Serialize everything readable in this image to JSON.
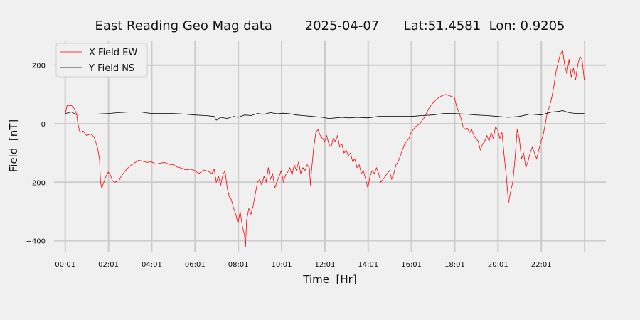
{
  "chart_data": {
    "type": "line",
    "title": "East Reading Geo Mag data        2025-04-07      Lat:51.4581  Lon: 0.9205",
    "xlabel": "Time  [Hr]",
    "ylabel": "Field  [nT]",
    "x_unit": "hours",
    "xlim": [
      -0.5,
      25
    ],
    "ylim": [
      -440,
      282
    ],
    "x_ticks": [
      {
        "value": 0.0167,
        "label": "00:01"
      },
      {
        "value": 2.0167,
        "label": "02:01"
      },
      {
        "value": 4.0167,
        "label": "04:01"
      },
      {
        "value": 6.0167,
        "label": "06:01"
      },
      {
        "value": 8.0167,
        "label": "08:01"
      },
      {
        "value": 10.0167,
        "label": "10:01"
      },
      {
        "value": 12.0167,
        "label": "12:01"
      },
      {
        "value": 14.0167,
        "label": "14:01"
      },
      {
        "value": 16.0167,
        "label": "16:01"
      },
      {
        "value": 18.0167,
        "label": "18:01"
      },
      {
        "value": 20.0167,
        "label": "20:01"
      },
      {
        "value": 22.0167,
        "label": "22:01"
      }
    ],
    "extra_gridlines_x": [
      24.0167
    ],
    "y_ticks": [
      {
        "value": 200,
        "label": "200"
      },
      {
        "value": 0,
        "label": "0"
      },
      {
        "value": -200,
        "label": "−200"
      },
      {
        "value": -400,
        "label": "−400"
      }
    ],
    "grid": true,
    "legend_position": "top-left",
    "series": [
      {
        "name": "X Field EW",
        "color": "#ff0000",
        "points": [
          [
            0.02,
            35
          ],
          [
            0.1,
            62
          ],
          [
            0.3,
            63
          ],
          [
            0.45,
            50
          ],
          [
            0.55,
            30
          ],
          [
            0.6,
            0
          ],
          [
            0.7,
            -30
          ],
          [
            0.85,
            -25
          ],
          [
            1.0,
            -40
          ],
          [
            1.2,
            -35
          ],
          [
            1.35,
            -45
          ],
          [
            1.5,
            -80
          ],
          [
            1.6,
            -120
          ],
          [
            1.65,
            -200
          ],
          [
            1.7,
            -220
          ],
          [
            1.8,
            -200
          ],
          [
            1.9,
            -180
          ],
          [
            2.0,
            -165
          ],
          [
            2.1,
            -175
          ],
          [
            2.2,
            -195
          ],
          [
            2.3,
            -200
          ],
          [
            2.5,
            -195
          ],
          [
            2.6,
            -180
          ],
          [
            2.8,
            -160
          ],
          [
            3.0,
            -145
          ],
          [
            3.2,
            -135
          ],
          [
            3.4,
            -125
          ],
          [
            3.6,
            -128
          ],
          [
            3.8,
            -132
          ],
          [
            4.0,
            -130
          ],
          [
            4.2,
            -138
          ],
          [
            4.4,
            -135
          ],
          [
            4.6,
            -132
          ],
          [
            4.8,
            -138
          ],
          [
            5.0,
            -140
          ],
          [
            5.2,
            -148
          ],
          [
            5.4,
            -152
          ],
          [
            5.6,
            -158
          ],
          [
            5.8,
            -155
          ],
          [
            6.0,
            -160
          ],
          [
            6.2,
            -170
          ],
          [
            6.4,
            -158
          ],
          [
            6.6,
            -162
          ],
          [
            6.8,
            -170
          ],
          [
            6.9,
            -155
          ],
          [
            7.0,
            -200
          ],
          [
            7.1,
            -180
          ],
          [
            7.2,
            -210
          ],
          [
            7.3,
            -175
          ],
          [
            7.4,
            -160
          ],
          [
            7.5,
            -220
          ],
          [
            7.6,
            -250
          ],
          [
            7.7,
            -260
          ],
          [
            7.8,
            -290
          ],
          [
            7.9,
            -310
          ],
          [
            8.0,
            -340
          ],
          [
            8.1,
            -300
          ],
          [
            8.2,
            -350
          ],
          [
            8.3,
            -380
          ],
          [
            8.35,
            -420
          ],
          [
            8.4,
            -330
          ],
          [
            8.5,
            -290
          ],
          [
            8.6,
            -310
          ],
          [
            8.7,
            -280
          ],
          [
            8.8,
            -240
          ],
          [
            8.9,
            -200
          ],
          [
            9.0,
            -190
          ],
          [
            9.1,
            -210
          ],
          [
            9.2,
            -180
          ],
          [
            9.3,
            -200
          ],
          [
            9.4,
            -150
          ],
          [
            9.5,
            -190
          ],
          [
            9.6,
            -170
          ],
          [
            9.7,
            -220
          ],
          [
            9.8,
            -200
          ],
          [
            9.9,
            -180
          ],
          [
            10.0,
            -160
          ],
          [
            10.1,
            -200
          ],
          [
            10.2,
            -175
          ],
          [
            10.3,
            -165
          ],
          [
            10.4,
            -150
          ],
          [
            10.5,
            -175
          ],
          [
            10.6,
            -140
          ],
          [
            10.7,
            -160
          ],
          [
            10.8,
            -130
          ],
          [
            10.9,
            -170
          ],
          [
            11.0,
            -150
          ],
          [
            11.1,
            -160
          ],
          [
            11.2,
            -140
          ],
          [
            11.3,
            -150
          ],
          [
            11.35,
            -210
          ],
          [
            11.4,
            -160
          ],
          [
            11.5,
            -80
          ],
          [
            11.6,
            -30
          ],
          [
            11.7,
            -20
          ],
          [
            11.8,
            -40
          ],
          [
            11.9,
            -50
          ],
          [
            12.0,
            -60
          ],
          [
            12.1,
            -40
          ],
          [
            12.2,
            -70
          ],
          [
            12.3,
            -80
          ],
          [
            12.4,
            -50
          ],
          [
            12.5,
            -60
          ],
          [
            12.6,
            -40
          ],
          [
            12.7,
            -80
          ],
          [
            12.8,
            -70
          ],
          [
            12.9,
            -100
          ],
          [
            13.0,
            -90
          ],
          [
            13.1,
            -110
          ],
          [
            13.2,
            -100
          ],
          [
            13.3,
            -130
          ],
          [
            13.4,
            -120
          ],
          [
            13.5,
            -150
          ],
          [
            13.6,
            -140
          ],
          [
            13.7,
            -170
          ],
          [
            13.8,
            -160
          ],
          [
            13.9,
            -190
          ],
          [
            14.0,
            -220
          ],
          [
            14.1,
            -180
          ],
          [
            14.2,
            -160
          ],
          [
            14.3,
            -170
          ],
          [
            14.4,
            -150
          ],
          [
            14.5,
            -170
          ],
          [
            14.6,
            -200
          ],
          [
            14.7,
            -190
          ],
          [
            14.8,
            -180
          ],
          [
            14.9,
            -170
          ],
          [
            15.0,
            -160
          ],
          [
            15.1,
            -190
          ],
          [
            15.2,
            -170
          ],
          [
            15.3,
            -140
          ],
          [
            15.4,
            -130
          ],
          [
            15.5,
            -110
          ],
          [
            15.6,
            -90
          ],
          [
            15.7,
            -70
          ],
          [
            15.8,
            -60
          ],
          [
            15.9,
            -50
          ],
          [
            16.0,
            -30
          ],
          [
            16.2,
            -10
          ],
          [
            16.4,
            0
          ],
          [
            16.6,
            20
          ],
          [
            16.8,
            50
          ],
          [
            17.0,
            70
          ],
          [
            17.2,
            85
          ],
          [
            17.4,
            95
          ],
          [
            17.6,
            100
          ],
          [
            17.8,
            95
          ],
          [
            18.0,
            90
          ],
          [
            18.1,
            60
          ],
          [
            18.2,
            40
          ],
          [
            18.3,
            20
          ],
          [
            18.4,
            -10
          ],
          [
            18.5,
            -20
          ],
          [
            18.6,
            -15
          ],
          [
            18.7,
            -30
          ],
          [
            18.8,
            -20
          ],
          [
            18.9,
            -40
          ],
          [
            19.0,
            -50
          ],
          [
            19.1,
            -60
          ],
          [
            19.2,
            -90
          ],
          [
            19.3,
            -70
          ],
          [
            19.4,
            -60
          ],
          [
            19.5,
            -40
          ],
          [
            19.6,
            -60
          ],
          [
            19.7,
            -30
          ],
          [
            19.8,
            -50
          ],
          [
            19.9,
            -10
          ],
          [
            20.0,
            -20
          ],
          [
            20.1,
            -50
          ],
          [
            20.2,
            -30
          ],
          [
            20.3,
            -110
          ],
          [
            20.4,
            -180
          ],
          [
            20.5,
            -270
          ],
          [
            20.6,
            -230
          ],
          [
            20.7,
            -200
          ],
          [
            20.8,
            -120
          ],
          [
            20.9,
            -20
          ],
          [
            21.0,
            -50
          ],
          [
            21.1,
            -120
          ],
          [
            21.2,
            -100
          ],
          [
            21.3,
            -150
          ],
          [
            21.4,
            -130
          ],
          [
            21.5,
            -100
          ],
          [
            21.6,
            -80
          ],
          [
            21.7,
            -100
          ],
          [
            21.8,
            -120
          ],
          [
            21.9,
            -90
          ],
          [
            22.0,
            -60
          ],
          [
            22.1,
            -40
          ],
          [
            22.2,
            0
          ],
          [
            22.3,
            40
          ],
          [
            22.4,
            60
          ],
          [
            22.5,
            90
          ],
          [
            22.6,
            130
          ],
          [
            22.7,
            180
          ],
          [
            22.8,
            210
          ],
          [
            22.9,
            240
          ],
          [
            23.0,
            250
          ],
          [
            23.1,
            200
          ],
          [
            23.2,
            170
          ],
          [
            23.3,
            220
          ],
          [
            23.4,
            160
          ],
          [
            23.5,
            190
          ],
          [
            23.6,
            150
          ],
          [
            23.7,
            200
          ],
          [
            23.8,
            230
          ],
          [
            23.9,
            220
          ],
          [
            24.0,
            150
          ]
        ]
      },
      {
        "name": "Y Field NS",
        "color": "#000000",
        "points": [
          [
            0.02,
            35
          ],
          [
            0.3,
            40
          ],
          [
            0.5,
            32
          ],
          [
            1.0,
            33
          ],
          [
            1.5,
            33
          ],
          [
            2.0,
            35
          ],
          [
            2.5,
            38
          ],
          [
            3.0,
            40
          ],
          [
            3.5,
            40
          ],
          [
            4.0,
            35
          ],
          [
            4.5,
            35
          ],
          [
            5.0,
            35
          ],
          [
            5.5,
            33
          ],
          [
            6.0,
            30
          ],
          [
            6.5,
            28
          ],
          [
            6.9,
            25
          ],
          [
            7.0,
            12
          ],
          [
            7.2,
            22
          ],
          [
            7.5,
            18
          ],
          [
            7.8,
            25
          ],
          [
            8.0,
            22
          ],
          [
            8.3,
            30
          ],
          [
            8.6,
            28
          ],
          [
            8.9,
            35
          ],
          [
            9.2,
            32
          ],
          [
            9.5,
            38
          ],
          [
            9.8,
            34
          ],
          [
            10.1,
            36
          ],
          [
            10.4,
            34
          ],
          [
            10.7,
            30
          ],
          [
            11.0,
            28
          ],
          [
            11.3,
            26
          ],
          [
            11.6,
            24
          ],
          [
            11.9,
            22
          ],
          [
            12.2,
            18
          ],
          [
            12.5,
            20
          ],
          [
            12.8,
            22
          ],
          [
            13.1,
            20
          ],
          [
            13.5,
            22
          ],
          [
            14.0,
            20
          ],
          [
            14.5,
            25
          ],
          [
            15.0,
            25
          ],
          [
            15.5,
            25
          ],
          [
            16.0,
            25
          ],
          [
            16.5,
            28
          ],
          [
            17.0,
            30
          ],
          [
            17.5,
            35
          ],
          [
            18.0,
            35
          ],
          [
            18.5,
            33
          ],
          [
            19.0,
            30
          ],
          [
            19.5,
            28
          ],
          [
            20.0,
            25
          ],
          [
            20.5,
            22
          ],
          [
            21.0,
            25
          ],
          [
            21.5,
            33
          ],
          [
            22.0,
            30
          ],
          [
            22.5,
            40
          ],
          [
            22.8,
            42
          ],
          [
            23.0,
            45
          ],
          [
            23.3,
            38
          ],
          [
            23.6,
            35
          ],
          [
            24.0,
            35
          ]
        ]
      }
    ]
  }
}
